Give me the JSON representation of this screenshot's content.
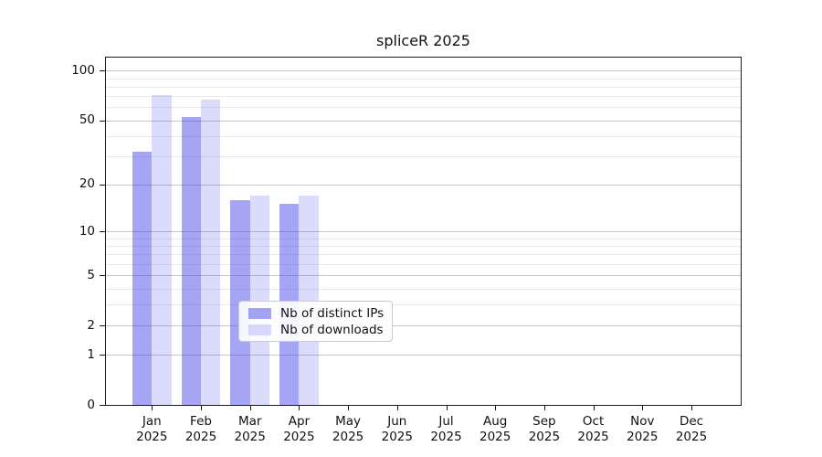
{
  "chart_data": {
    "type": "bar",
    "title": "spliceR 2025",
    "year_label": "2025",
    "categories": [
      "Jan",
      "Feb",
      "Mar",
      "Apr",
      "May",
      "Jun",
      "Jul",
      "Aug",
      "Sep",
      "Oct",
      "Nov",
      "Dec"
    ],
    "series": [
      {
        "name": "Nb of distinct IPs",
        "color": "rgba(64,64,232,0.47)",
        "values": [
          32,
          52,
          16,
          15,
          0,
          0,
          0,
          0,
          0,
          0,
          0,
          0
        ]
      },
      {
        "name": "Nb of downloads",
        "color": "rgba(64,64,232,0.19)",
        "values": [
          71,
          67,
          17,
          17,
          0,
          0,
          0,
          0,
          0,
          0,
          0,
          0
        ]
      }
    ],
    "y_scale": "log10(v+1)",
    "ylim": [
      0,
      120
    ],
    "y_ticks": [
      0,
      1,
      2,
      5,
      10,
      20,
      50,
      100
    ],
    "y_minor_ticks": [
      3,
      4,
      6,
      7,
      8,
      9,
      30,
      40,
      60,
      70,
      80,
      90
    ],
    "grid": "horizontal",
    "legend": {
      "position": "lower-center"
    },
    "colors": {
      "major_grid": "#c6c6c6",
      "minor_grid": "#e9e9e9",
      "axis": "#1a1a1a",
      "text": "#111111",
      "background": "#ffffff"
    }
  }
}
